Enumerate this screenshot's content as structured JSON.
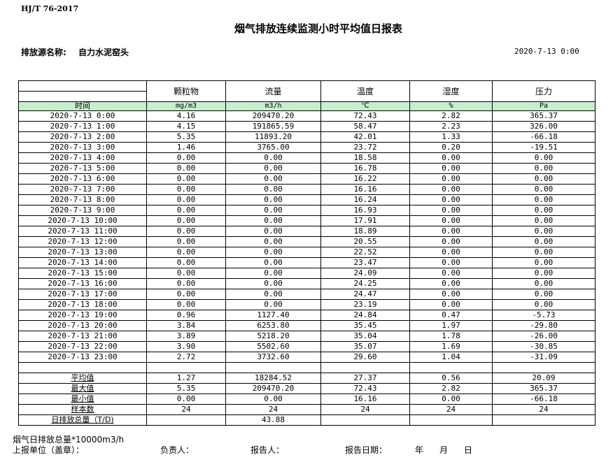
{
  "standard": "HJ/T  76-2017",
  "title": "烟气排放连续监测小时平均值日报表",
  "source_label": "排放源名称:",
  "source_value": "自力水泥窑头",
  "report_datetime": "2020-7-13 0:00",
  "columns": [
    {
      "name": "颗粒物",
      "unit": "mg/m3"
    },
    {
      "name": "流量",
      "unit": "m3/h"
    },
    {
      "name": "温度",
      "unit": "℃"
    },
    {
      "name": "湿度",
      "unit": "%"
    },
    {
      "name": "压力",
      "unit": "Pa"
    }
  ],
  "time_label": "时间",
  "rows": [
    [
      "2020-7-13 0:00",
      "4.16",
      "209470.20",
      "72.43",
      "2.82",
      "365.37"
    ],
    [
      "2020-7-13 1:00",
      "4.15",
      "191865.59",
      "58.47",
      "2.23",
      "326.00"
    ],
    [
      "2020-7-13 2:00",
      "5.35",
      "11893.20",
      "42.01",
      "1.33",
      "-66.18"
    ],
    [
      "2020-7-13 3:00",
      "1.46",
      "3765.00",
      "23.72",
      "0.20",
      "-19.51"
    ],
    [
      "2020-7-13 4:00",
      "0.00",
      "0.00",
      "18.58",
      "0.00",
      "0.00"
    ],
    [
      "2020-7-13 5:00",
      "0.00",
      "0.00",
      "16.78",
      "0.00",
      "0.00"
    ],
    [
      "2020-7-13 6:00",
      "0.00",
      "0.00",
      "16.22",
      "0.00",
      "0.00"
    ],
    [
      "2020-7-13 7:00",
      "0.00",
      "0.00",
      "16.16",
      "0.00",
      "0.00"
    ],
    [
      "2020-7-13 8:00",
      "0.00",
      "0.00",
      "16.24",
      "0.00",
      "0.00"
    ],
    [
      "2020-7-13 9:00",
      "0.00",
      "0.00",
      "16.93",
      "0.00",
      "0.00"
    ],
    [
      "2020-7-13 10:00",
      "0.00",
      "0.00",
      "17.91",
      "0.00",
      "0.00"
    ],
    [
      "2020-7-13 11:00",
      "0.00",
      "0.00",
      "18.89",
      "0.00",
      "0.00"
    ],
    [
      "2020-7-13 12:00",
      "0.00",
      "0.00",
      "20.55",
      "0.00",
      "0.00"
    ],
    [
      "2020-7-13 13:00",
      "0.00",
      "0.00",
      "22.52",
      "0.00",
      "0.00"
    ],
    [
      "2020-7-13 14:00",
      "0.00",
      "0.00",
      "23.47",
      "0.00",
      "0.00"
    ],
    [
      "2020-7-13 15:00",
      "0.00",
      "0.00",
      "24.09",
      "0.00",
      "0.00"
    ],
    [
      "2020-7-13 16:00",
      "0.00",
      "0.00",
      "24.25",
      "0.00",
      "0.00"
    ],
    [
      "2020-7-13 17:00",
      "0.00",
      "0.00",
      "24.47",
      "0.00",
      "0.00"
    ],
    [
      "2020-7-13 18:00",
      "0.00",
      "0.00",
      "23.19",
      "0.00",
      "0.00"
    ],
    [
      "2020-7-13 19:00",
      "0.96",
      "1127.40",
      "24.84",
      "0.47",
      "-5.73"
    ],
    [
      "2020-7-13 20:00",
      "3.84",
      "6253.80",
      "35.45",
      "1.97",
      "-29.80"
    ],
    [
      "2020-7-13 21:00",
      "3.89",
      "5218.20",
      "35.04",
      "1.78",
      "-26.00"
    ],
    [
      "2020-7-13 22:00",
      "3.90",
      "5502.60",
      "35.07",
      "1.69",
      "-30.85"
    ],
    [
      "2020-7-13 23:00",
      "2.72",
      "3732.60",
      "29.60",
      "1.04",
      "-31.09"
    ]
  ],
  "summary": [
    [
      "平均值",
      "1.27",
      "18284.52",
      "27.37",
      "0.56",
      "20.09"
    ],
    [
      "最大值",
      "5.35",
      "209470.20",
      "72.43",
      "2.82",
      "365.37"
    ],
    [
      "最小值",
      "0.00",
      "0.00",
      "16.16",
      "0.00",
      "-66.18"
    ],
    [
      "样本数",
      "24",
      "24",
      "24",
      "24",
      "24"
    ],
    [
      "日排放总量（T/D)",
      "",
      "43.88",
      "",
      "",
      ""
    ]
  ],
  "footer": {
    "note": "烟气日排放总量*10000m3/h",
    "unit_label": "上报单位（盖章）：",
    "responsible_label": "负责人：",
    "reporter_label": "报告人：",
    "date_label": "报告日期：",
    "year": "年",
    "month": "月",
    "day": "日"
  }
}
